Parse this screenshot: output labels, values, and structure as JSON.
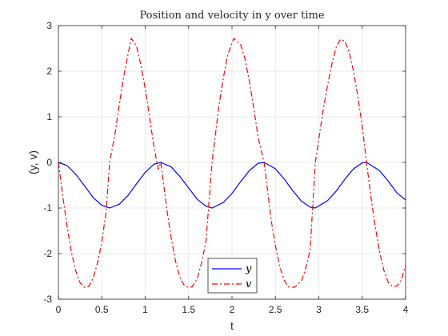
{
  "chart_data": {
    "type": "line",
    "title": "Position and velocity in y over time",
    "xlabel": "t",
    "ylabel": "(y, v)",
    "xlim": [
      0,
      4
    ],
    "ylim": [
      -3,
      3
    ],
    "x_ticks": [
      0,
      0.5,
      1,
      1.5,
      2,
      2.5,
      3,
      3.5,
      4
    ],
    "x_tick_labels": [
      "0",
      "0.5",
      "1",
      "1.5",
      "2",
      "2.5",
      "3",
      "3.5",
      "4"
    ],
    "y_ticks": [
      -3,
      -2,
      -1,
      0,
      1,
      2,
      3
    ],
    "y_tick_labels": [
      "-3",
      "-2",
      "-1",
      "0",
      "1",
      "2",
      "3"
    ],
    "grid": true,
    "legend_location": "bottom-center",
    "series": [
      {
        "name": "y",
        "color": "#0000ff",
        "line_style": "solid",
        "x": [
          0,
          0.1,
          0.2,
          0.3,
          0.4,
          0.5,
          0.59,
          0.7,
          0.8,
          0.9,
          1.0,
          1.1,
          1.18,
          1.3,
          1.4,
          1.5,
          1.6,
          1.7,
          1.77,
          1.9,
          2.0,
          2.1,
          2.2,
          2.3,
          2.37,
          2.5,
          2.6,
          2.7,
          2.8,
          2.9,
          2.96,
          3.1,
          3.2,
          3.3,
          3.4,
          3.5,
          3.55,
          3.7,
          3.8,
          3.9,
          4.0
        ],
        "y": [
          0,
          -0.07,
          -0.26,
          -0.51,
          -0.77,
          -0.94,
          -1.0,
          -0.92,
          -0.73,
          -0.47,
          -0.22,
          -0.04,
          0,
          -0.1,
          -0.31,
          -0.56,
          -0.81,
          -0.96,
          -1.0,
          -0.88,
          -0.68,
          -0.42,
          -0.18,
          -0.02,
          0,
          -0.14,
          -0.36,
          -0.62,
          -0.85,
          -0.98,
          -1.0,
          -0.84,
          -0.63,
          -0.37,
          -0.14,
          -0.01,
          0,
          -0.18,
          -0.41,
          -0.67,
          -0.82
        ]
      },
      {
        "name": "v",
        "color": "#ff0000",
        "line_style": "dashdot",
        "x": [
          0,
          0.05,
          0.1,
          0.15,
          0.2,
          0.25,
          0.3,
          0.35,
          0.4,
          0.45,
          0.5,
          0.55,
          0.59,
          0.65,
          0.7,
          0.75,
          0.8,
          0.84,
          0.9,
          0.95,
          1.0,
          1.05,
          1.1,
          1.15,
          1.18,
          1.25,
          1.3,
          1.35,
          1.4,
          1.45,
          1.5,
          1.54,
          1.6,
          1.65,
          1.7,
          1.77,
          1.85,
          1.9,
          1.95,
          2.02,
          2.1,
          2.15,
          2.2,
          2.25,
          2.3,
          2.37,
          2.45,
          2.5,
          2.55,
          2.6,
          2.65,
          2.72,
          2.8,
          2.85,
          2.9,
          2.96,
          3.05,
          3.1,
          3.15,
          3.2,
          3.25,
          3.3,
          3.35,
          3.4,
          3.45,
          3.5,
          3.55,
          3.6,
          3.65,
          3.7,
          3.75,
          3.8,
          3.85,
          3.9,
          3.95,
          4.0
        ],
        "y": [
          0,
          -0.73,
          -1.4,
          -1.97,
          -2.38,
          -2.64,
          -2.74,
          -2.72,
          -2.54,
          -2.21,
          -1.75,
          -1.07,
          0,
          0.6,
          1.24,
          1.86,
          2.35,
          2.72,
          2.55,
          2.14,
          1.62,
          1.0,
          0.35,
          -0.15,
          0,
          -1.04,
          -1.66,
          -2.17,
          -2.52,
          -2.7,
          -2.74,
          -2.73,
          -2.55,
          -2.2,
          -1.73,
          0,
          1.25,
          1.85,
          2.35,
          2.72,
          2.58,
          2.27,
          1.78,
          1.2,
          0.56,
          0,
          -1.25,
          -1.82,
          -2.28,
          -2.58,
          -2.73,
          -2.74,
          -2.6,
          -2.32,
          -1.92,
          0,
          1.15,
          1.68,
          2.15,
          2.52,
          2.7,
          2.66,
          2.42,
          2.0,
          1.45,
          0.8,
          0,
          -0.75,
          -1.4,
          -1.96,
          -2.37,
          -2.63,
          -2.72,
          -2.71,
          -2.58,
          -2.26
        ]
      }
    ]
  }
}
